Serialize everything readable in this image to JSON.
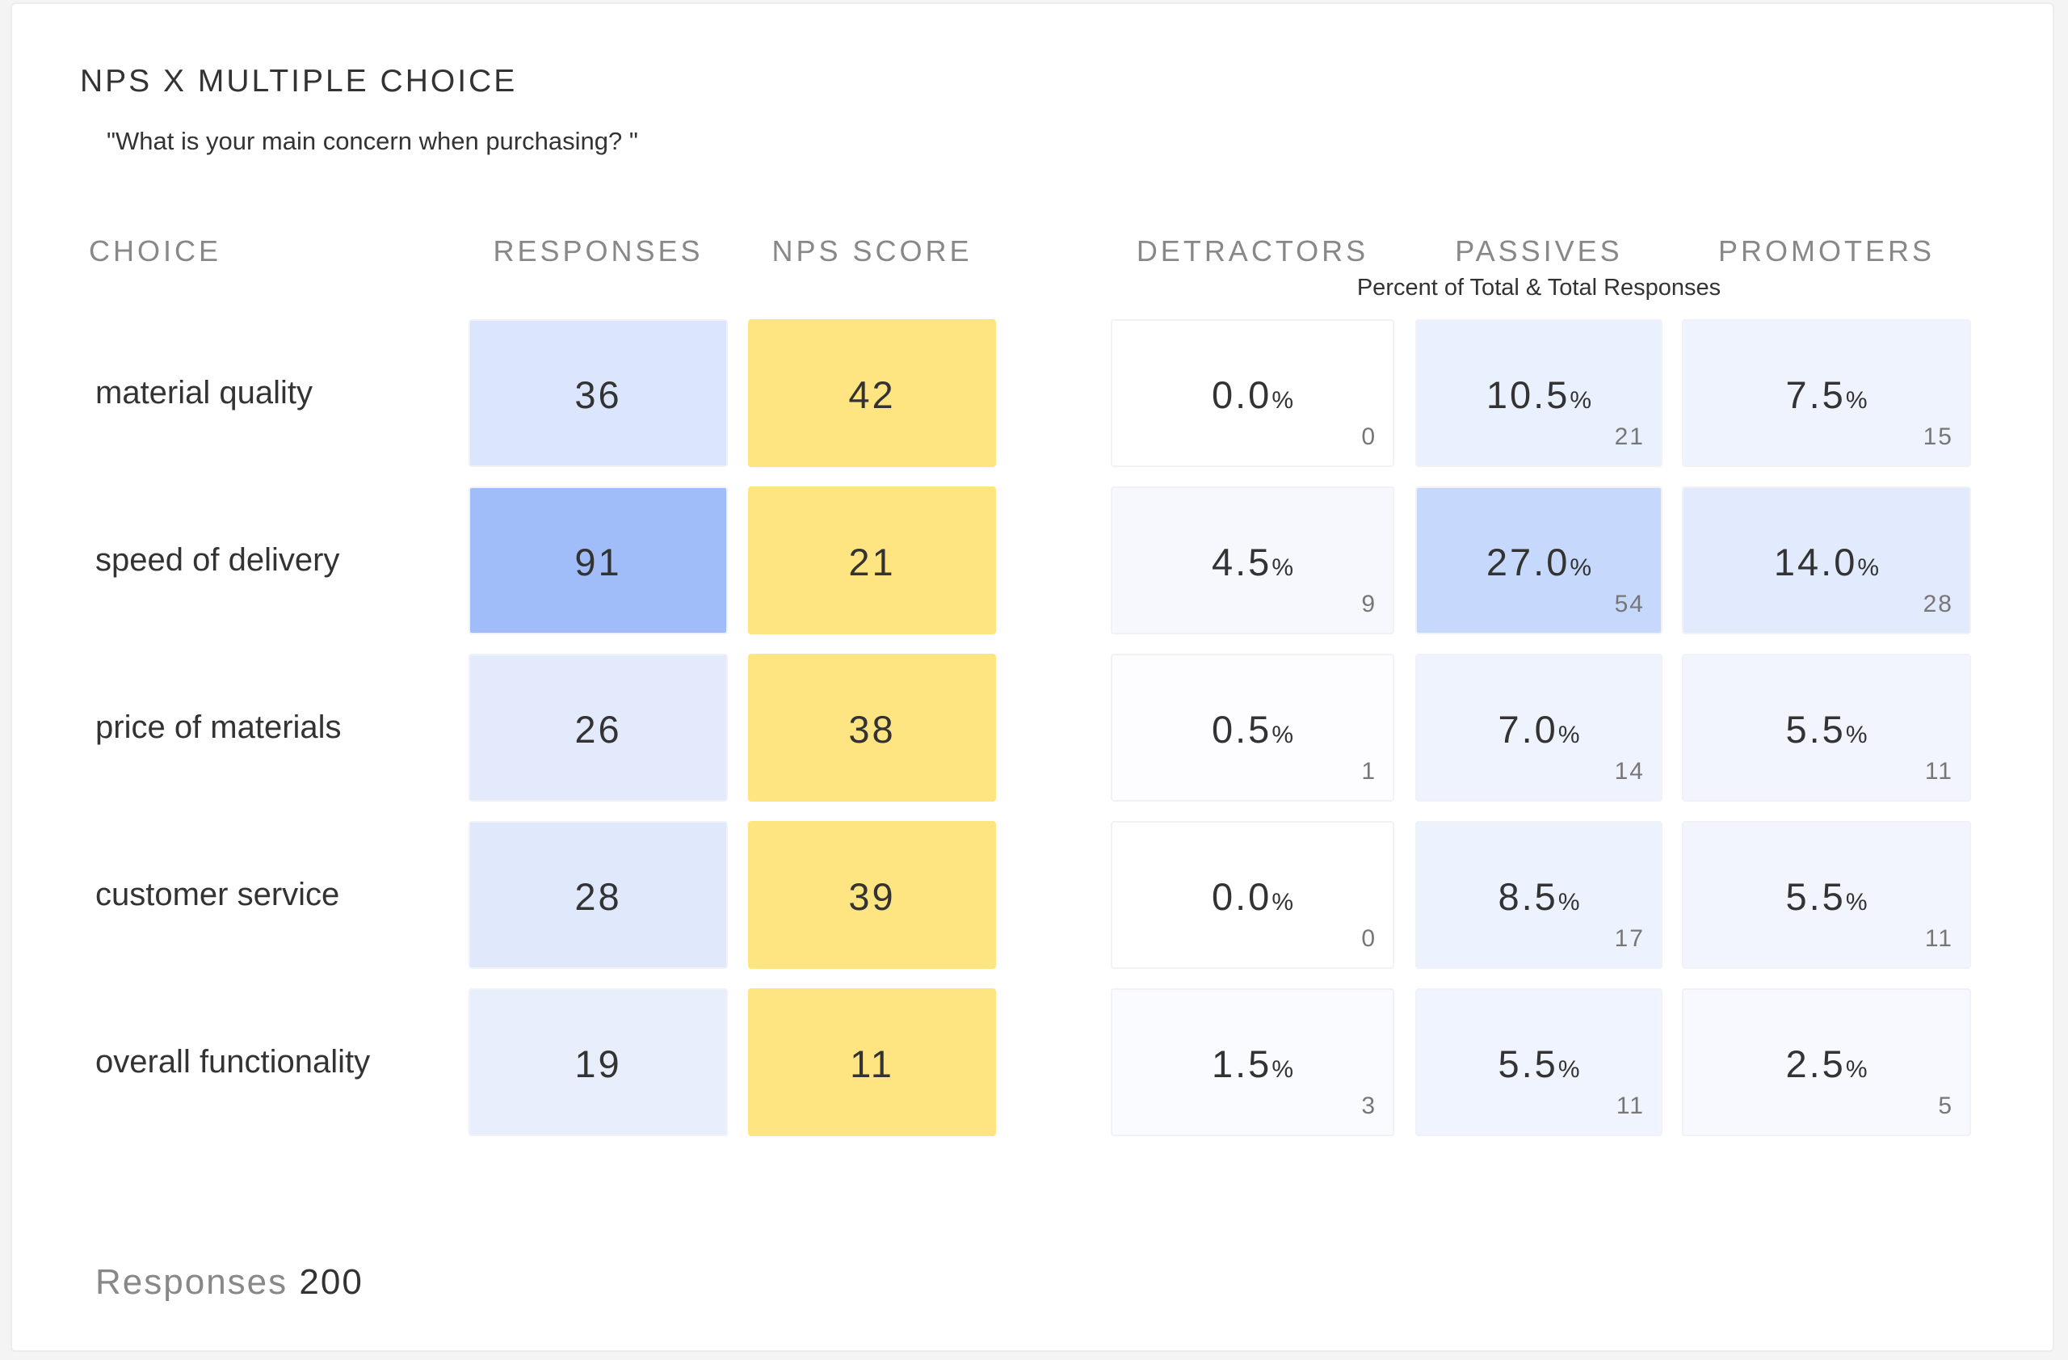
{
  "title": "NPS X MULTIPLE CHOICE",
  "question": "\"What is your main concern when purchasing? \"",
  "headers": {
    "choice": "CHOICE",
    "responses": "RESPONSES",
    "nps_score": "NPS SCORE",
    "detractors": "DETRACTORS",
    "passives": "PASSIVES",
    "promoters": "PROMOTERS",
    "sub": "Percent of Total & Total Responses"
  },
  "percent_sign": "%",
  "rows": [
    {
      "choice": "material quality",
      "responses": "36",
      "responses_color": "#dbe5fb",
      "nps": "42",
      "nps_color": "#ffe482",
      "detractors": {
        "pct": "0.0",
        "count": "0",
        "color": "#ffffff"
      },
      "passives": {
        "pct": "10.5",
        "count": "21",
        "color": "#e9f0fe"
      },
      "promoters": {
        "pct": "7.5",
        "count": "15",
        "color": "#eff3fe"
      }
    },
    {
      "choice": "speed of delivery",
      "responses": "91",
      "responses_color": "#a0bdfa",
      "nps": "21",
      "nps_color": "#ffe482",
      "detractors": {
        "pct": "4.5",
        "count": "9",
        "color": "#f6f8fe"
      },
      "passives": {
        "pct": "27.0",
        "count": "54",
        "color": "#c6d8fb"
      },
      "promoters": {
        "pct": "14.0",
        "count": "28",
        "color": "#e2eafd"
      }
    },
    {
      "choice": "price of materials",
      "responses": "26",
      "responses_color": "#e2eafc",
      "nps": "38",
      "nps_color": "#ffe482",
      "detractors": {
        "pct": "0.5",
        "count": "1",
        "color": "#fdfdff"
      },
      "passives": {
        "pct": "7.0",
        "count": "14",
        "color": "#eef3fe"
      },
      "promoters": {
        "pct": "5.5",
        "count": "11",
        "color": "#f2f5fe"
      }
    },
    {
      "choice": "customer service",
      "responses": "28",
      "responses_color": "#e0e8fc",
      "nps": "39",
      "nps_color": "#ffe482",
      "detractors": {
        "pct": "0.0",
        "count": "0",
        "color": "#ffffff"
      },
      "passives": {
        "pct": "8.5",
        "count": "17",
        "color": "#ecf2fe"
      },
      "promoters": {
        "pct": "5.5",
        "count": "11",
        "color": "#f2f5fe"
      }
    },
    {
      "choice": "overall functionality",
      "responses": "19",
      "responses_color": "#e8eefc",
      "nps": "11",
      "nps_color": "#ffe482",
      "detractors": {
        "pct": "1.5",
        "count": "3",
        "color": "#fafbff"
      },
      "passives": {
        "pct": "5.5",
        "count": "11",
        "color": "#f0f4fe"
      },
      "promoters": {
        "pct": "2.5",
        "count": "5",
        "color": "#f7f9fe"
      }
    }
  ],
  "footer": {
    "label": "Responses",
    "value": "200"
  }
}
